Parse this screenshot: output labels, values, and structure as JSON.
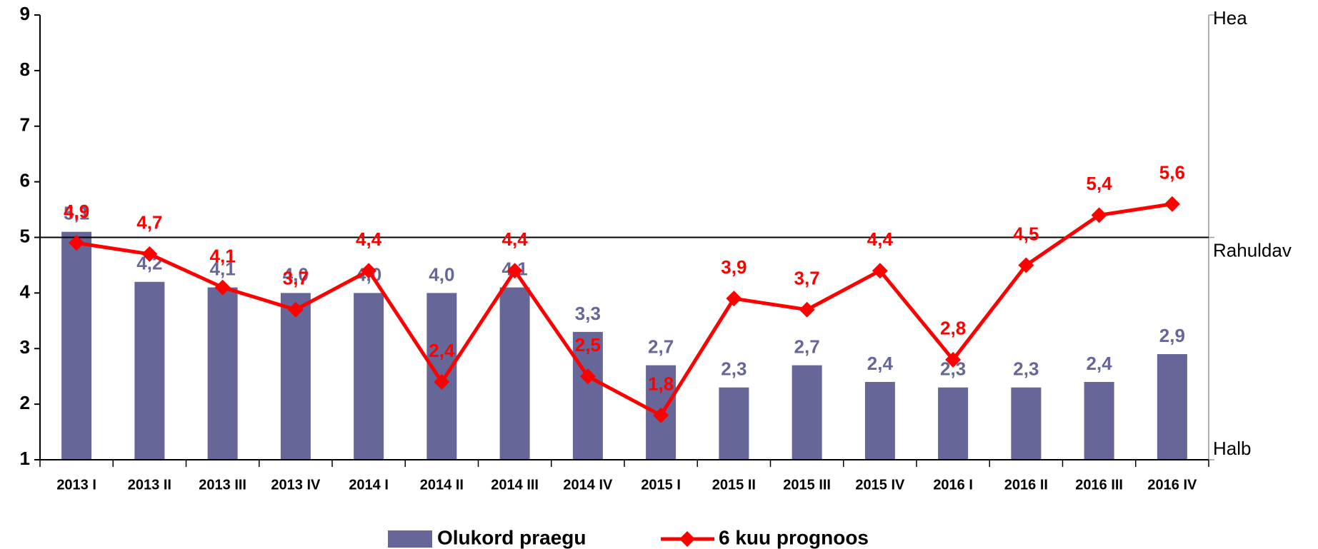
{
  "chart_data": {
    "type": "bar_line",
    "categories": [
      "2013 I",
      "2013 II",
      "2013 III",
      "2013 IV",
      "2014 I",
      "2014 II",
      "2014 III",
      "2014 IV",
      "2015 I",
      "2015 II",
      "2015 III",
      "2015 IV",
      "2016 I",
      "2016 II",
      "2016 III",
      "2016 IV"
    ],
    "series": [
      {
        "name": "Olukord praegu",
        "type": "bar",
        "color": "#666699",
        "values": [
          5.1,
          4.2,
          4.1,
          4.0,
          4.0,
          4.0,
          4.1,
          3.3,
          2.7,
          2.3,
          2.7,
          2.4,
          2.3,
          2.3,
          2.4,
          2.9
        ],
        "value_labels": [
          "5,1",
          "4,2",
          "4,1",
          "4,0",
          "4,0",
          "4,0",
          "4,1",
          "3,3",
          "2,7",
          "2,3",
          "2,7",
          "2,4",
          "2,3",
          "2,3",
          "2,4",
          "2,9"
        ]
      },
      {
        "name": "6 kuu prognoos",
        "type": "line",
        "color": "#ff0000",
        "values": [
          4.9,
          4.7,
          4.1,
          3.7,
          4.4,
          2.4,
          4.4,
          2.5,
          1.8,
          3.9,
          3.7,
          4.4,
          2.8,
          4.5,
          5.4,
          5.6
        ],
        "value_labels": [
          "4,9",
          "4,7",
          "4,1",
          "3,7",
          "4,4",
          "2,4",
          "4,4",
          "2,5",
          "1,8",
          "3,9",
          "3,7",
          "4,4",
          "2,8",
          "4,5",
          "5,4",
          "5,6"
        ]
      }
    ],
    "ylim": [
      1,
      9
    ],
    "yticks": [
      1,
      2,
      3,
      4,
      5,
      6,
      7,
      8,
      9
    ],
    "reference_line": 5,
    "right_labels": [
      {
        "value": 9,
        "label": "Hea"
      },
      {
        "value": 5,
        "label": "Rahuldav"
      },
      {
        "value": 1,
        "label": "Halb"
      }
    ],
    "legend": "bottom"
  }
}
